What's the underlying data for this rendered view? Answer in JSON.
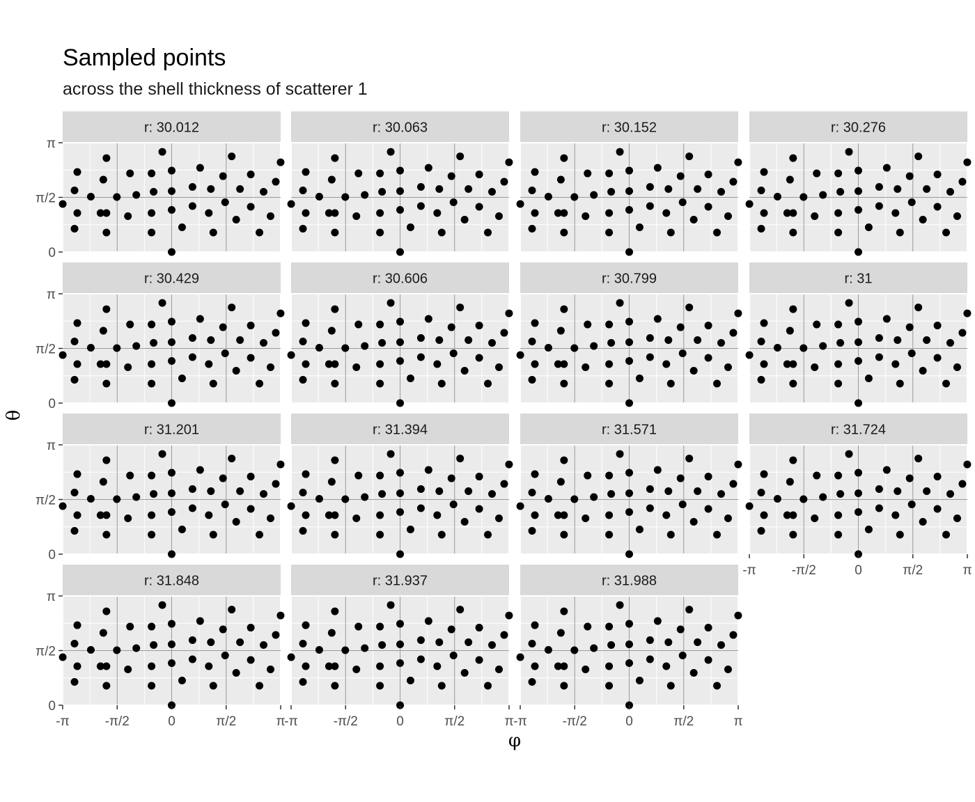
{
  "title": "Sampled points",
  "subtitle": "across the shell thickness of scatterer 1",
  "chart_data": {
    "type": "scatter",
    "facet_var": "r",
    "facets": [
      "r: 30.012",
      "r: 30.063",
      "r: 30.152",
      "r: 30.276",
      "r: 30.429",
      "r: 30.606",
      "r: 30.799",
      "r: 31",
      "r: 31.201",
      "r: 31.394",
      "r: 31.571",
      "r: 31.724",
      "r: 31.848",
      "r: 31.937",
      "r: 31.988"
    ],
    "xlabel": "φ",
    "ylabel": "θ",
    "xlim": [
      -3.14159,
      3.14159
    ],
    "ylim": [
      0,
      3.14159
    ],
    "x_ticks": [
      -3.14159,
      -1.5708,
      0,
      1.5708,
      3.14159
    ],
    "x_tick_labels": [
      "-π",
      "-π/2",
      "0",
      "π/2",
      "π"
    ],
    "y_ticks": [
      0,
      1.5708,
      3.14159
    ],
    "y_tick_labels": [
      "0",
      "π/2",
      "π"
    ],
    "grid": true,
    "points": [
      [
        -3.14,
        1.38
      ],
      [
        -2.8,
        0.67
      ],
      [
        -2.8,
        1.77
      ],
      [
        -2.72,
        1.12
      ],
      [
        -2.72,
        2.3
      ],
      [
        -2.33,
        1.59
      ],
      [
        -2.05,
        1.12
      ],
      [
        -1.97,
        2.08
      ],
      [
        -1.88,
        0.56
      ],
      [
        -1.88,
        1.12
      ],
      [
        -1.88,
        2.7
      ],
      [
        -1.58,
        1.58
      ],
      [
        -1.26,
        1.03
      ],
      [
        -1.2,
        2.26
      ],
      [
        -1.02,
        1.64
      ],
      [
        -0.58,
        1.12
      ],
      [
        -0.58,
        2.26
      ],
      [
        -0.58,
        0.56
      ],
      [
        -0.52,
        1.73
      ],
      [
        -0.27,
        2.88
      ],
      [
        0.0,
        0.0
      ],
      [
        0.0,
        1.21
      ],
      [
        0.0,
        1.75
      ],
      [
        0.0,
        2.34
      ],
      [
        0.3,
        0.71
      ],
      [
        0.6,
        1.32
      ],
      [
        0.6,
        1.87
      ],
      [
        0.82,
        2.42
      ],
      [
        1.07,
        1.12
      ],
      [
        1.13,
        1.81
      ],
      [
        1.2,
        0.56
      ],
      [
        1.48,
        2.18
      ],
      [
        1.54,
        1.43
      ],
      [
        1.73,
        2.75
      ],
      [
        1.86,
        0.93
      ],
      [
        1.97,
        1.81
      ],
      [
        2.28,
        1.3
      ],
      [
        2.28,
        2.23
      ],
      [
        2.53,
        0.56
      ],
      [
        2.65,
        1.73
      ],
      [
        2.85,
        1.03
      ],
      [
        3.0,
        2.02
      ],
      [
        3.14,
        2.58
      ]
    ]
  }
}
